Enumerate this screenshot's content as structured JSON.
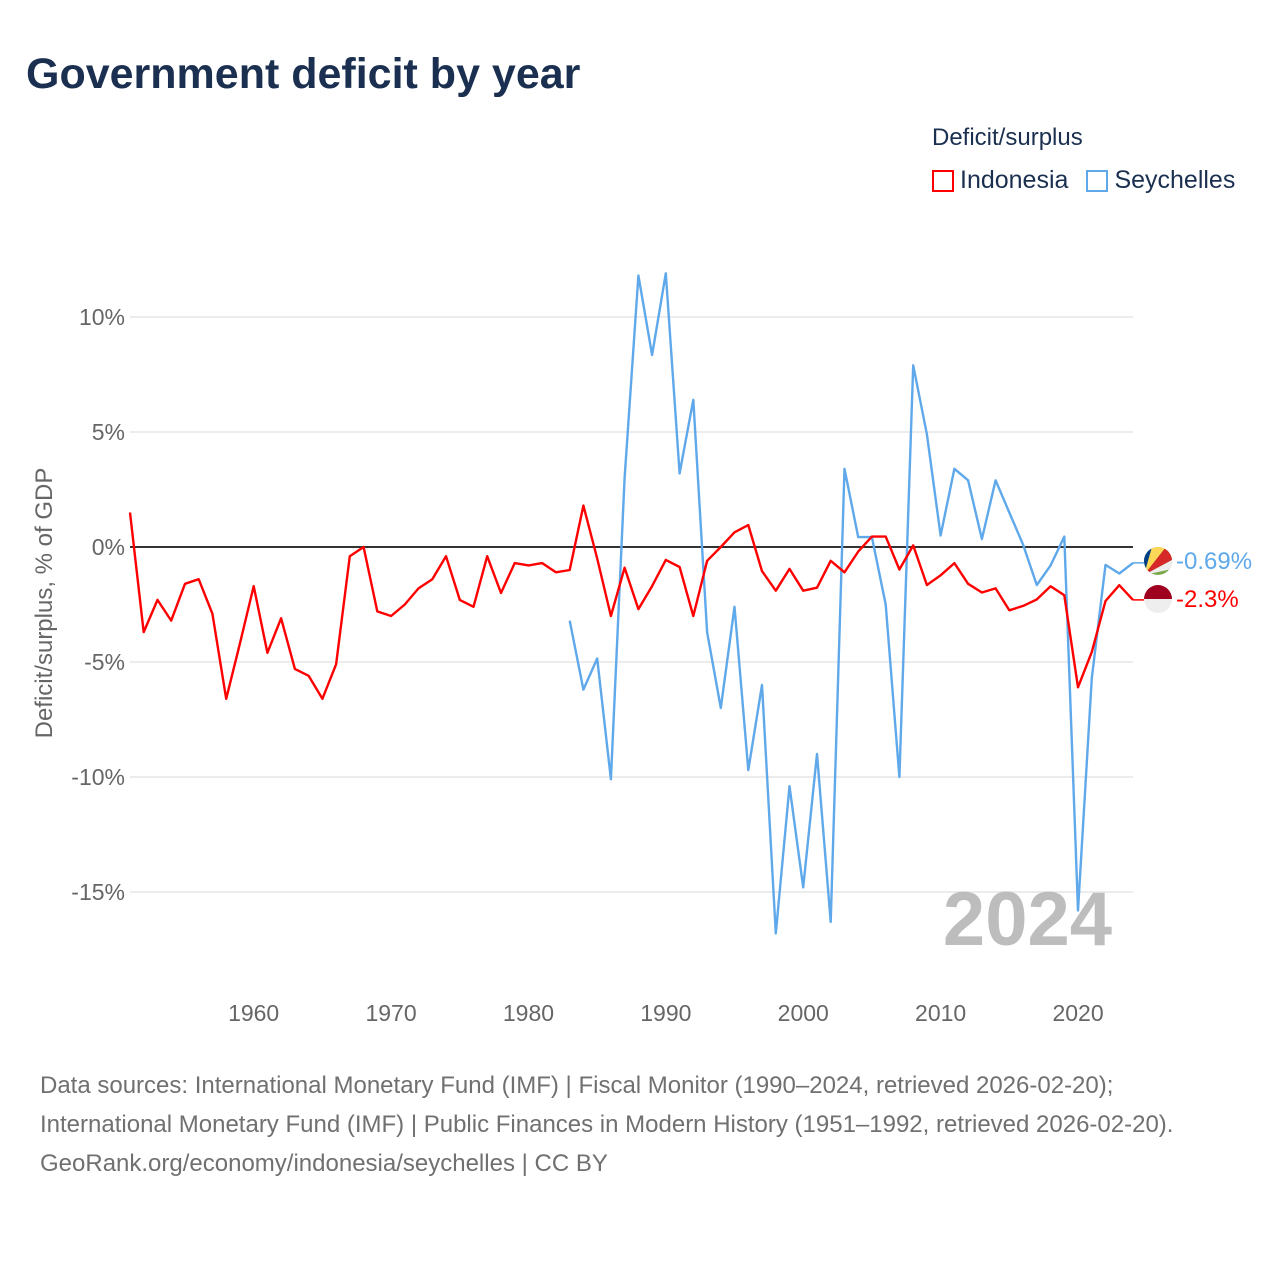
{
  "chart_data": {
    "type": "line",
    "title": "Government deficit by year",
    "ylabel": "Deficit/surplus, % of GDP",
    "xlabel": "",
    "xlim": [
      1951,
      2024
    ],
    "ylim": [
      -18,
      13
    ],
    "x_ticks": [
      1960,
      1970,
      1980,
      1990,
      2000,
      2010,
      2020
    ],
    "y_ticks": [
      -15,
      -10,
      -5,
      0,
      5,
      10
    ],
    "y_tick_labels": [
      "-15%",
      "-10%",
      "-5%",
      "0%",
      "5%",
      "10%"
    ],
    "grid": true,
    "legend_title": "Deficit/surplus",
    "legend_position": "top-right",
    "year_watermark": "2024",
    "series": [
      {
        "name": "Indonesia",
        "color": "#ff0000",
        "start_year": 1951,
        "end_label": "-2.3%",
        "values": [
          1.5,
          -3.7,
          -2.3,
          -3.2,
          -1.6,
          -1.4,
          -2.9,
          -6.6,
          -4.2,
          -1.7,
          -4.6,
          -3.1,
          -5.3,
          -5.6,
          -6.6,
          -5.1,
          -0.4,
          0.0,
          -2.8,
          -3.0,
          -2.5,
          -1.8,
          -1.4,
          -0.4,
          -2.3,
          -2.6,
          -0.4,
          -2.0,
          -0.7,
          -0.8,
          -0.7,
          -1.1,
          -1.0,
          1.8,
          -0.5,
          -3.0,
          -0.9,
          -2.7,
          -1.7,
          -0.56,
          -0.87,
          -3.0,
          -0.6,
          0.0,
          0.64,
          0.95,
          -1.05,
          -1.9,
          -0.95,
          -1.9,
          -1.77,
          -0.6,
          -1.1,
          -0.2,
          0.45,
          0.45,
          -0.98,
          0.07,
          -1.65,
          -1.23,
          -0.7,
          -1.6,
          -1.98,
          -1.8,
          -2.75,
          -2.56,
          -2.28,
          -1.71,
          -2.1,
          -6.1,
          -4.56,
          -2.35,
          -1.66,
          -2.3
        ]
      },
      {
        "name": "Seychelles",
        "color": "#5fa8ea",
        "start_year": 1983,
        "end_label": "-0.69%",
        "values": [
          -3.2,
          -6.2,
          -4.85,
          -10.1,
          3.0,
          11.8,
          8.35,
          11.9,
          3.2,
          6.4,
          -3.7,
          -7.0,
          -2.6,
          -9.7,
          -6.0,
          -16.8,
          -10.4,
          -14.8,
          -9.0,
          -16.3,
          3.4,
          0.43,
          0.43,
          -2.5,
          -10.0,
          7.9,
          4.9,
          0.5,
          3.4,
          2.9,
          0.35,
          2.9,
          1.5,
          0.1,
          -1.65,
          -0.8,
          0.45,
          -15.8,
          -5.7,
          -0.78,
          -1.15,
          -0.69
        ]
      }
    ]
  },
  "footer": {
    "sources_line1": "Data sources: International Monetary Fund (IMF) | Fiscal Monitor (1990–2024, retrieved 2026-02-20);",
    "sources_line2": "International Monetary Fund (IMF) | Public Finances in Modern History (1951–1992, retrieved 2026-02-20).",
    "attribution": "GeoRank.org/economy/indonesia/seychelles | CC BY"
  }
}
